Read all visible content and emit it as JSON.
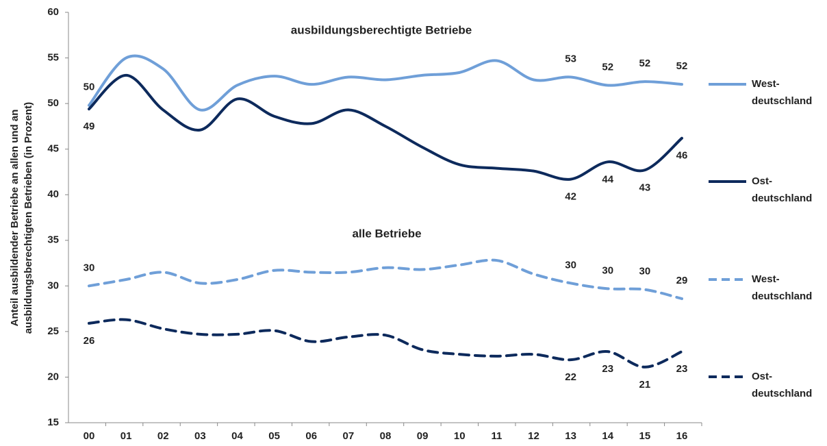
{
  "chart_data": {
    "type": "line",
    "annotations": [
      "ausbildungsberechtigte Betriebe",
      "alle Betriebe"
    ],
    "ylabel": [
      "Anteil ausbildender Betriebe an allen und an",
      "ausbildungsberechtigten  Betrieben (in Prozent)"
    ],
    "categories": [
      "00",
      "01",
      "02",
      "03",
      "04",
      "05",
      "06",
      "07",
      "08",
      "09",
      "10",
      "11",
      "12",
      "13",
      "14",
      "15",
      "16"
    ],
    "ylim": [
      15,
      60
    ],
    "yticks": [
      15,
      20,
      25,
      30,
      35,
      40,
      45,
      50,
      55,
      60
    ],
    "smooth": true,
    "series": [
      {
        "name": "West-\ndeutschland",
        "color": "#6f9fd8",
        "style": "solid",
        "values": [
          49.8,
          55.0,
          53.8,
          49.3,
          52.0,
          53.0,
          52.1,
          52.9,
          52.6,
          53.1,
          53.4,
          54.7,
          52.6,
          52.9,
          52.0,
          52.4,
          52.1
        ],
        "value_labels": [
          "50",
          null,
          null,
          null,
          null,
          null,
          null,
          null,
          null,
          null,
          null,
          null,
          null,
          "53",
          "52",
          "52",
          "52"
        ]
      },
      {
        "name": "Ost-\ndeutschland",
        "color": "#0d2a5c",
        "style": "solid",
        "values": [
          49.4,
          53.1,
          49.3,
          47.1,
          50.5,
          48.6,
          47.8,
          49.3,
          47.5,
          45.2,
          43.3,
          42.9,
          42.6,
          41.7,
          43.6,
          42.7,
          46.2
        ],
        "value_labels": [
          "49",
          null,
          null,
          null,
          null,
          null,
          null,
          null,
          null,
          null,
          null,
          null,
          null,
          "42",
          "44",
          "43",
          "46"
        ]
      },
      {
        "name": "West-\ndeutschland",
        "color": "#6f9fd8",
        "style": "dashed",
        "values": [
          30.0,
          30.7,
          31.5,
          30.3,
          30.7,
          31.7,
          31.5,
          31.5,
          32.0,
          31.8,
          32.3,
          32.8,
          31.3,
          30.3,
          29.7,
          29.6,
          28.6
        ],
        "value_labels": [
          "30",
          null,
          null,
          null,
          null,
          null,
          null,
          null,
          null,
          null,
          null,
          null,
          null,
          "30",
          "30",
          "30",
          "29"
        ]
      },
      {
        "name": "Ost-\ndeutschland",
        "color": "#0d2a5c",
        "style": "dashed",
        "values": [
          25.9,
          26.3,
          25.3,
          24.7,
          24.7,
          25.1,
          23.9,
          24.4,
          24.6,
          23.0,
          22.5,
          22.3,
          22.5,
          21.9,
          22.8,
          21.1,
          22.8
        ],
        "value_labels": [
          "26",
          null,
          null,
          null,
          null,
          null,
          null,
          null,
          null,
          null,
          null,
          null,
          null,
          "22",
          "23",
          "21",
          "23"
        ]
      }
    ]
  }
}
